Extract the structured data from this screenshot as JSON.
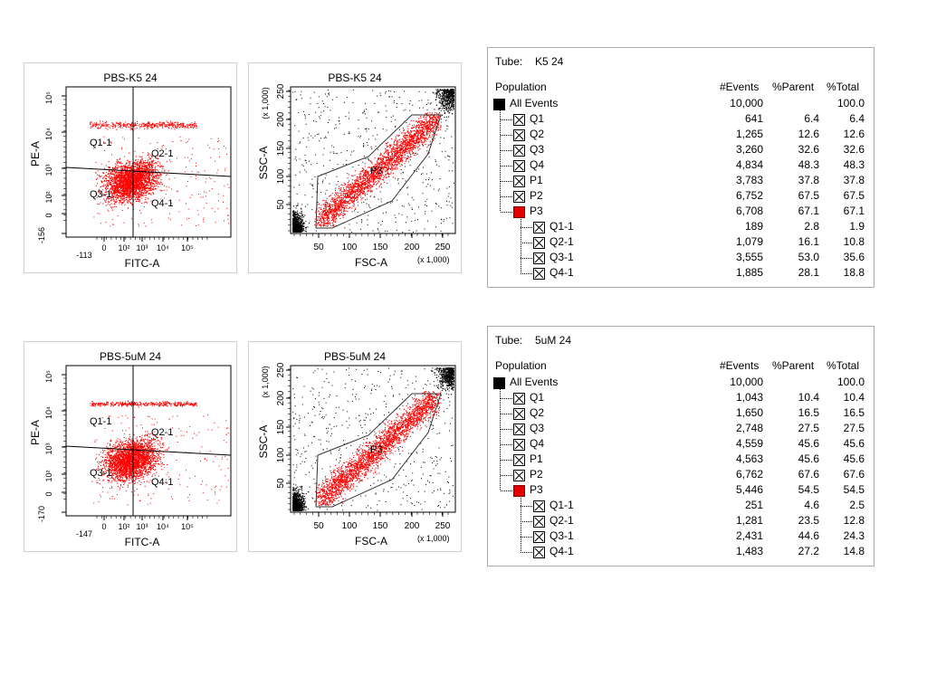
{
  "samples": [
    {
      "id": "k5",
      "quadrant_plot": {
        "title": "PBS-K5 24",
        "xlabel": "FITC-A",
        "ylabel": "PE-A",
        "x_ticks": [
          "-113",
          "0",
          "10²",
          "10³",
          "10⁴",
          "10⁵"
        ],
        "y_ticks": [
          "-156",
          "0",
          "10²",
          "10³",
          "10⁴",
          "10⁵"
        ],
        "quadrants": [
          "Q1-1",
          "Q2-1",
          "Q3-1",
          "Q4-1"
        ]
      },
      "scatter_plot": {
        "title": "PBS-K5 24",
        "xlabel": "FSC-A",
        "ylabel": "SSC-A",
        "scale_note": "(x 1,000)",
        "x_ticks": [
          "50",
          "100",
          "150",
          "200",
          "250"
        ],
        "y_ticks": [
          "50",
          "100",
          "150",
          "200",
          "250"
        ],
        "gate_label": "P3"
      },
      "table": {
        "tube_label": "Tube:",
        "tube_name": "K5 24",
        "headers": [
          "Population",
          "#Events",
          "%Parent",
          "%Total"
        ],
        "rows": [
          {
            "name": "All Events",
            "level": 0,
            "box": "black",
            "events": "10,000",
            "parent": "",
            "total": "100.0"
          },
          {
            "name": "Q1",
            "level": 1,
            "box": "x",
            "events": "641",
            "parent": "6.4",
            "total": "6.4"
          },
          {
            "name": "Q2",
            "level": 1,
            "box": "x",
            "events": "1,265",
            "parent": "12.6",
            "total": "12.6"
          },
          {
            "name": "Q3",
            "level": 1,
            "box": "x",
            "events": "3,260",
            "parent": "32.6",
            "total": "32.6"
          },
          {
            "name": "Q4",
            "level": 1,
            "box": "x",
            "events": "4,834",
            "parent": "48.3",
            "total": "48.3"
          },
          {
            "name": "P1",
            "level": 1,
            "box": "x",
            "events": "3,783",
            "parent": "37.8",
            "total": "37.8"
          },
          {
            "name": "P2",
            "level": 1,
            "box": "x",
            "events": "6,752",
            "parent": "67.5",
            "total": "67.5"
          },
          {
            "name": "P3",
            "level": 1,
            "box": "red",
            "events": "6,708",
            "parent": "67.1",
            "total": "67.1"
          },
          {
            "name": "Q1-1",
            "level": 2,
            "box": "x",
            "events": "189",
            "parent": "2.8",
            "total": "1.9"
          },
          {
            "name": "Q2-1",
            "level": 2,
            "box": "x",
            "events": "1,079",
            "parent": "16.1",
            "total": "10.8"
          },
          {
            "name": "Q3-1",
            "level": 2,
            "box": "x",
            "events": "3,555",
            "parent": "53.0",
            "total": "35.6"
          },
          {
            "name": "Q4-1",
            "level": 2,
            "box": "x",
            "events": "1,885",
            "parent": "28.1",
            "total": "18.8"
          }
        ]
      }
    },
    {
      "id": "um5",
      "quadrant_plot": {
        "title": "PBS-5uM 24",
        "xlabel": "FITC-A",
        "ylabel": "PE-A",
        "x_ticks": [
          "-147",
          "0",
          "10²",
          "10³",
          "10⁴",
          "10⁵"
        ],
        "y_ticks": [
          "-170",
          "0",
          "10²",
          "10³",
          "10⁴",
          "10⁵"
        ],
        "quadrants": [
          "Q1-1",
          "Q2-1",
          "Q3-1",
          "Q4-1"
        ]
      },
      "scatter_plot": {
        "title": "PBS-5uM 24",
        "xlabel": "FSC-A",
        "ylabel": "SSC-A",
        "scale_note": "(x 1,000)",
        "x_ticks": [
          "50",
          "100",
          "150",
          "200",
          "250"
        ],
        "y_ticks": [
          "50",
          "100",
          "150",
          "200",
          "250"
        ],
        "gate_label": "P3"
      },
      "table": {
        "tube_label": "Tube:",
        "tube_name": "5uM 24",
        "headers": [
          "Population",
          "#Events",
          "%Parent",
          "%Total"
        ],
        "rows": [
          {
            "name": "All Events",
            "level": 0,
            "box": "black",
            "events": "10,000",
            "parent": "",
            "total": "100.0"
          },
          {
            "name": "Q1",
            "level": 1,
            "box": "x",
            "events": "1,043",
            "parent": "10.4",
            "total": "10.4"
          },
          {
            "name": "Q2",
            "level": 1,
            "box": "x",
            "events": "1,650",
            "parent": "16.5",
            "total": "16.5"
          },
          {
            "name": "Q3",
            "level": 1,
            "box": "x",
            "events": "2,748",
            "parent": "27.5",
            "total": "27.5"
          },
          {
            "name": "Q4",
            "level": 1,
            "box": "x",
            "events": "4,559",
            "parent": "45.6",
            "total": "45.6"
          },
          {
            "name": "P1",
            "level": 1,
            "box": "x",
            "events": "4,563",
            "parent": "45.6",
            "total": "45.6"
          },
          {
            "name": "P2",
            "level": 1,
            "box": "x",
            "events": "6,762",
            "parent": "67.6",
            "total": "67.6"
          },
          {
            "name": "P3",
            "level": 1,
            "box": "red",
            "events": "5,446",
            "parent": "54.5",
            "total": "54.5"
          },
          {
            "name": "Q1-1",
            "level": 2,
            "box": "x",
            "events": "251",
            "parent": "4.6",
            "total": "2.5"
          },
          {
            "name": "Q2-1",
            "level": 2,
            "box": "x",
            "events": "1,281",
            "parent": "23.5",
            "total": "12.8"
          },
          {
            "name": "Q3-1",
            "level": 2,
            "box": "x",
            "events": "2,431",
            "parent": "44.6",
            "total": "24.3"
          },
          {
            "name": "Q4-1",
            "level": 2,
            "box": "x",
            "events": "1,483",
            "parent": "27.2",
            "total": "14.8"
          }
        ]
      }
    }
  ],
  "colors": {
    "gated": "#ff0000",
    "ungated": "#000000",
    "axis": "#000000",
    "frame": "#d0d0d0",
    "all_events_box": "#000000",
    "p3_box": "#e00000"
  },
  "chart_data": [
    {
      "type": "scatter",
      "title": "PBS-K5 24",
      "xlabel": "FITC-A",
      "ylabel": "PE-A",
      "x_scale": "biexponential",
      "y_scale": "biexponential",
      "gates": [
        {
          "name": "Q1-1",
          "events": 189
        },
        {
          "name": "Q2-1",
          "events": 1079
        },
        {
          "name": "Q3-1",
          "events": 3555
        },
        {
          "name": "Q4-1",
          "events": 1885
        }
      ],
      "grid": false
    },
    {
      "type": "scatter",
      "title": "PBS-K5 24",
      "xlabel": "FSC-A",
      "ylabel": "SSC-A",
      "xlim": [
        0,
        262
      ],
      "ylim": [
        0,
        262
      ],
      "gate": "P3",
      "grid": false
    },
    {
      "type": "scatter",
      "title": "PBS-5uM 24",
      "xlabel": "FITC-A",
      "ylabel": "PE-A",
      "x_scale": "biexponential",
      "y_scale": "biexponential",
      "gates": [
        {
          "name": "Q1-1",
          "events": 251
        },
        {
          "name": "Q2-1",
          "events": 1281
        },
        {
          "name": "Q3-1",
          "events": 2431
        },
        {
          "name": "Q4-1",
          "events": 1483
        }
      ],
      "grid": false
    },
    {
      "type": "scatter",
      "title": "PBS-5uM 24",
      "xlabel": "FSC-A",
      "ylabel": "SSC-A",
      "xlim": [
        0,
        262
      ],
      "ylim": [
        0,
        262
      ],
      "gate": "P3",
      "grid": false
    }
  ]
}
